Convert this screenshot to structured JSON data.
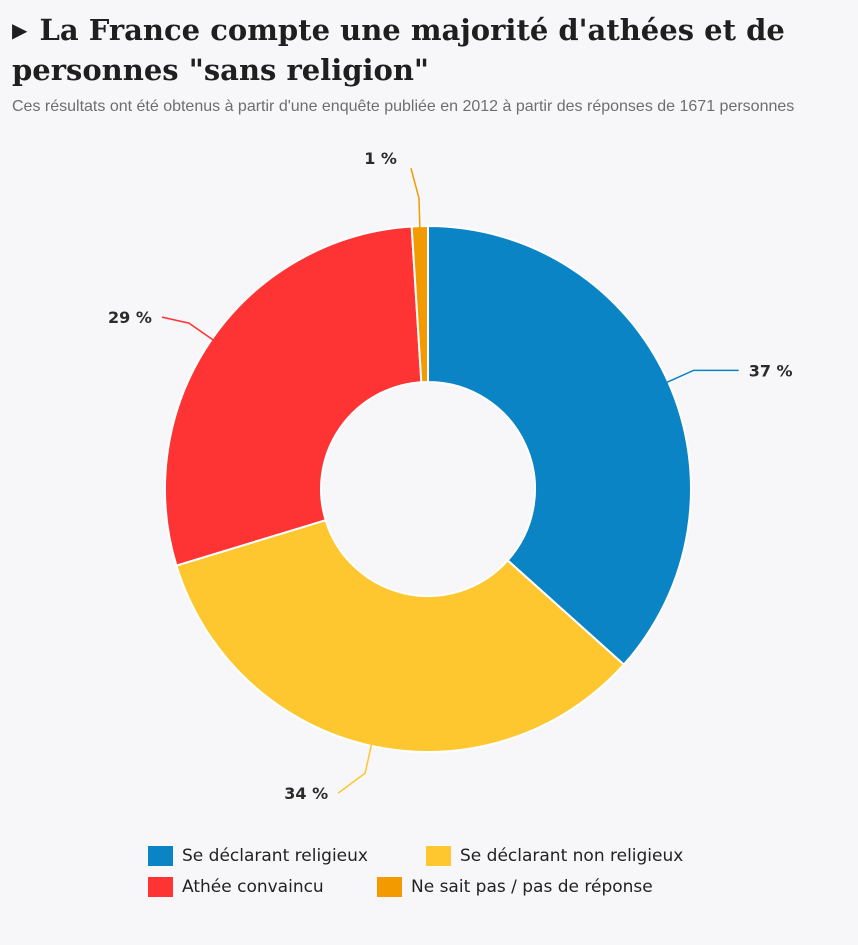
{
  "header": {
    "title": "La France compte une majorité d'athées et de personnes \"sans religion\"",
    "subtitle": "Ces résultats ont été obtenus à partir d'une enquête publiée en 2012 à partir des réponses de 1671 personnes"
  },
  "chart_data": {
    "type": "pie",
    "donut": true,
    "title": "La France compte une majorité d'athées et de personnes \"sans religion\"",
    "subtitle": "Ces résultats ont été obtenus à partir d'une enquête publiée en 2012 à partir des réponses de 1671 personnes",
    "legend_position": "bottom",
    "slices": [
      {
        "name": "Se déclarant religieux",
        "value": 37,
        "label": "37 %",
        "color": "#0a84c4"
      },
      {
        "name": "Se déclarant non religieux",
        "value": 34,
        "label": "34 %",
        "color": "#fec730"
      },
      {
        "name": "Athée convaincu",
        "value": 29,
        "label": "29 %",
        "color": "#fe3333"
      },
      {
        "name": "Ne sait pas / pas de réponse",
        "value": 1,
        "label": "1 %",
        "color": "#f39a00"
      }
    ]
  }
}
